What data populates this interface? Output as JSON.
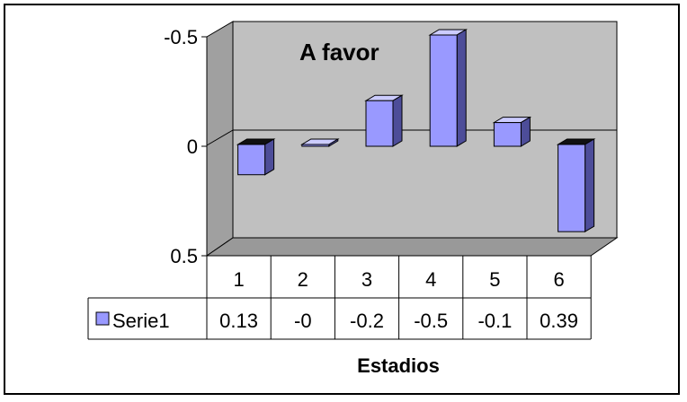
{
  "chart_data": {
    "type": "bar",
    "title": "A favor",
    "xlabel": "Estadios",
    "ylabel": "",
    "categories": [
      "1",
      "2",
      "3",
      "4",
      "5",
      "6"
    ],
    "series": [
      {
        "name": "Serie1",
        "values": [
          0.13,
          -0.0,
          -0.2,
          -0.5,
          -0.1,
          0.39
        ],
        "color": "#9999ff"
      }
    ],
    "table_values": [
      "0.13",
      "-0",
      "-0.2",
      "-0.5",
      "-0.1",
      "0.39"
    ],
    "yticks": [
      "-0.5",
      "0",
      "0.5"
    ],
    "ylim": [
      -0.5,
      0.5
    ],
    "y_axis_inverted": true,
    "grid": false,
    "legend": "data-table-left",
    "colors": {
      "plot_wall": "#c0c0c0",
      "plot_floor": "#999999",
      "bar_front": "#9999ff",
      "bar_side": "#4d4d99",
      "bar_top": "#ccccff"
    }
  }
}
